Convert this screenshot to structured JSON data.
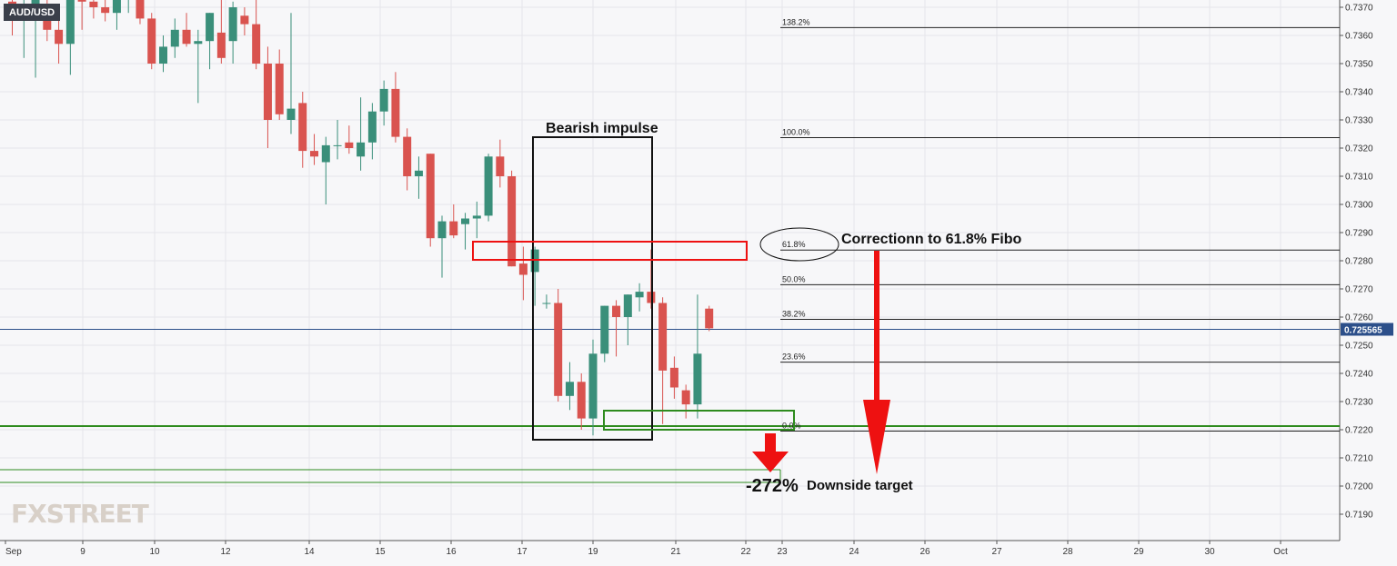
{
  "symbol": "AUD/USD",
  "logo_text": "FXSTREET",
  "current_price": "0.725565",
  "colors": {
    "bull": "#3a8f7a",
    "bear": "#d9534f",
    "grid": "#e6e6ea",
    "price_line": "#2c4f8a",
    "support": "#2e8b1e",
    "annotation_red": "#ee1111"
  },
  "chart_data": {
    "type": "candlestick",
    "title": "",
    "ylim": [
      0.7183,
      0.7374
    ],
    "y_ticks": [
      "0.7370",
      "0.7360",
      "0.7350",
      "0.7340",
      "0.7330",
      "0.7320",
      "0.7310",
      "0.7300",
      "0.7290",
      "0.7280",
      "0.7270",
      "0.7260",
      "0.7250",
      "0.7240",
      "0.7230",
      "0.7220",
      "0.7210",
      "0.7200",
      "0.7190"
    ],
    "x_labels": [
      "Sep",
      "9",
      "10",
      "12",
      "14",
      "15",
      "16",
      "17",
      "19",
      "21",
      "22",
      "23",
      "24",
      "26",
      "27",
      "28",
      "29",
      "30",
      "Oct"
    ],
    "candles": [
      {
        "o": 0.7372,
        "h": 0.7376,
        "l": 0.736,
        "c": 0.7366
      },
      {
        "o": 0.7366,
        "h": 0.7374,
        "l": 0.7352,
        "c": 0.7371
      },
      {
        "o": 0.7371,
        "h": 0.7376,
        "l": 0.7345,
        "c": 0.7373
      },
      {
        "o": 0.7368,
        "h": 0.7376,
        "l": 0.7358,
        "c": 0.7362
      },
      {
        "o": 0.7362,
        "h": 0.7368,
        "l": 0.735,
        "c": 0.7357
      },
      {
        "o": 0.7357,
        "h": 0.7374,
        "l": 0.7346,
        "c": 0.7374
      },
      {
        "o": 0.7374,
        "h": 0.7376,
        "l": 0.7362,
        "c": 0.7372
      },
      {
        "o": 0.7372,
        "h": 0.7376,
        "l": 0.7366,
        "c": 0.737
      },
      {
        "o": 0.737,
        "h": 0.7376,
        "l": 0.7365,
        "c": 0.7368
      },
      {
        "o": 0.7368,
        "h": 0.7374,
        "l": 0.7362,
        "c": 0.7374
      },
      {
        "o": 0.7374,
        "h": 0.7376,
        "l": 0.7368,
        "c": 0.7374
      },
      {
        "o": 0.7374,
        "h": 0.7376,
        "l": 0.7364,
        "c": 0.7366
      },
      {
        "o": 0.7366,
        "h": 0.7368,
        "l": 0.7348,
        "c": 0.735
      },
      {
        "o": 0.735,
        "h": 0.736,
        "l": 0.7347,
        "c": 0.7356
      },
      {
        "o": 0.7356,
        "h": 0.7366,
        "l": 0.7352,
        "c": 0.7362
      },
      {
        "o": 0.7362,
        "h": 0.7368,
        "l": 0.7356,
        "c": 0.7357
      },
      {
        "o": 0.7357,
        "h": 0.7362,
        "l": 0.7336,
        "c": 0.7358
      },
      {
        "o": 0.7358,
        "h": 0.7368,
        "l": 0.7348,
        "c": 0.7368
      },
      {
        "o": 0.7361,
        "h": 0.7376,
        "l": 0.735,
        "c": 0.7352
      },
      {
        "o": 0.7358,
        "h": 0.7372,
        "l": 0.735,
        "c": 0.737
      },
      {
        "o": 0.7367,
        "h": 0.737,
        "l": 0.736,
        "c": 0.7364
      },
      {
        "o": 0.7364,
        "h": 0.7374,
        "l": 0.7348,
        "c": 0.735
      },
      {
        "o": 0.735,
        "h": 0.7356,
        "l": 0.732,
        "c": 0.733
      },
      {
        "o": 0.735,
        "h": 0.7355,
        "l": 0.733,
        "c": 0.7332
      },
      {
        "o": 0.733,
        "h": 0.7368,
        "l": 0.7325,
        "c": 0.7334
      },
      {
        "o": 0.7336,
        "h": 0.734,
        "l": 0.7313,
        "c": 0.7319
      },
      {
        "o": 0.7319,
        "h": 0.7325,
        "l": 0.7314,
        "c": 0.7317
      },
      {
        "o": 0.7315,
        "h": 0.7324,
        "l": 0.73,
        "c": 0.7321
      },
      {
        "o": 0.7321,
        "h": 0.733,
        "l": 0.7316,
        "c": 0.7321
      },
      {
        "o": 0.7322,
        "h": 0.7328,
        "l": 0.7318,
        "c": 0.732
      },
      {
        "o": 0.7317,
        "h": 0.7338,
        "l": 0.7312,
        "c": 0.7322
      },
      {
        "o": 0.7322,
        "h": 0.7336,
        "l": 0.7316,
        "c": 0.7333
      },
      {
        "o": 0.7333,
        "h": 0.7344,
        "l": 0.7328,
        "c": 0.7341
      },
      {
        "o": 0.7341,
        "h": 0.7347,
        "l": 0.7322,
        "c": 0.7324
      },
      {
        "o": 0.7324,
        "h": 0.7327,
        "l": 0.7305,
        "c": 0.731
      },
      {
        "o": 0.731,
        "h": 0.7317,
        "l": 0.7302,
        "c": 0.7312
      },
      {
        "o": 0.7318,
        "h": 0.7318,
        "l": 0.7285,
        "c": 0.7288
      },
      {
        "o": 0.7288,
        "h": 0.7296,
        "l": 0.7274,
        "c": 0.7294
      },
      {
        "o": 0.7294,
        "h": 0.73,
        "l": 0.7288,
        "c": 0.7289
      },
      {
        "o": 0.7293,
        "h": 0.7297,
        "l": 0.7284,
        "c": 0.7295
      },
      {
        "o": 0.7295,
        "h": 0.7301,
        "l": 0.7288,
        "c": 0.7296
      },
      {
        "o": 0.7296,
        "h": 0.7318,
        "l": 0.7294,
        "c": 0.7317
      },
      {
        "o": 0.7317,
        "h": 0.7323,
        "l": 0.7306,
        "c": 0.731
      },
      {
        "o": 0.731,
        "h": 0.7312,
        "l": 0.7278,
        "c": 0.7278
      },
      {
        "o": 0.7279,
        "h": 0.7285,
        "l": 0.7266,
        "c": 0.7275
      },
      {
        "o": 0.7276,
        "h": 0.7285,
        "l": 0.7264,
        "c": 0.7284
      },
      {
        "o": 0.7265,
        "h": 0.7268,
        "l": 0.7263,
        "c": 0.7265
      },
      {
        "o": 0.7265,
        "h": 0.727,
        "l": 0.723,
        "c": 0.7232
      },
      {
        "o": 0.7232,
        "h": 0.7244,
        "l": 0.7227,
        "c": 0.7237
      },
      {
        "o": 0.7237,
        "h": 0.724,
        "l": 0.722,
        "c": 0.7224
      },
      {
        "o": 0.7224,
        "h": 0.7252,
        "l": 0.7218,
        "c": 0.7247
      },
      {
        "o": 0.7247,
        "h": 0.7264,
        "l": 0.7244,
        "c": 0.7264
      },
      {
        "o": 0.7264,
        "h": 0.7266,
        "l": 0.7246,
        "c": 0.726
      },
      {
        "o": 0.726,
        "h": 0.7268,
        "l": 0.725,
        "c": 0.7268
      },
      {
        "o": 0.7267,
        "h": 0.7272,
        "l": 0.7262,
        "c": 0.7269
      },
      {
        "o": 0.7269,
        "h": 0.7284,
        "l": 0.7263,
        "c": 0.7265
      },
      {
        "o": 0.7265,
        "h": 0.7267,
        "l": 0.7222,
        "c": 0.7241
      },
      {
        "o": 0.7242,
        "h": 0.7246,
        "l": 0.7231,
        "c": 0.7235
      },
      {
        "o": 0.7234,
        "h": 0.7236,
        "l": 0.7224,
        "c": 0.7229
      },
      {
        "o": 0.7229,
        "h": 0.7268,
        "l": 0.7224,
        "c": 0.7247
      },
      {
        "o": 0.7263,
        "h": 0.7264,
        "l": 0.7255,
        "c": 0.7256
      }
    ],
    "fibonacci": [
      {
        "label": "138.2%",
        "price": 0.73628
      },
      {
        "label": "100.0%",
        "price": 0.73237
      },
      {
        "label": "61.8%",
        "price": 0.72838
      },
      {
        "label": "50.0%",
        "price": 0.72715
      },
      {
        "label": "38.2%",
        "price": 0.72592
      },
      {
        "label": "23.6%",
        "price": 0.7244
      },
      {
        "label": "0.0%",
        "price": 0.72195
      }
    ],
    "horizontal_levels": {
      "price_line": 0.725565,
      "support": 0.72213,
      "target_upper": 0.72058,
      "target_lower": 0.72013
    },
    "annotations": {
      "impulse_label": "Bearish impulse",
      "correction_label": "Correctionn to 61.8% Fibo",
      "target_pct": "-272%",
      "target_label": "Downside target"
    }
  }
}
